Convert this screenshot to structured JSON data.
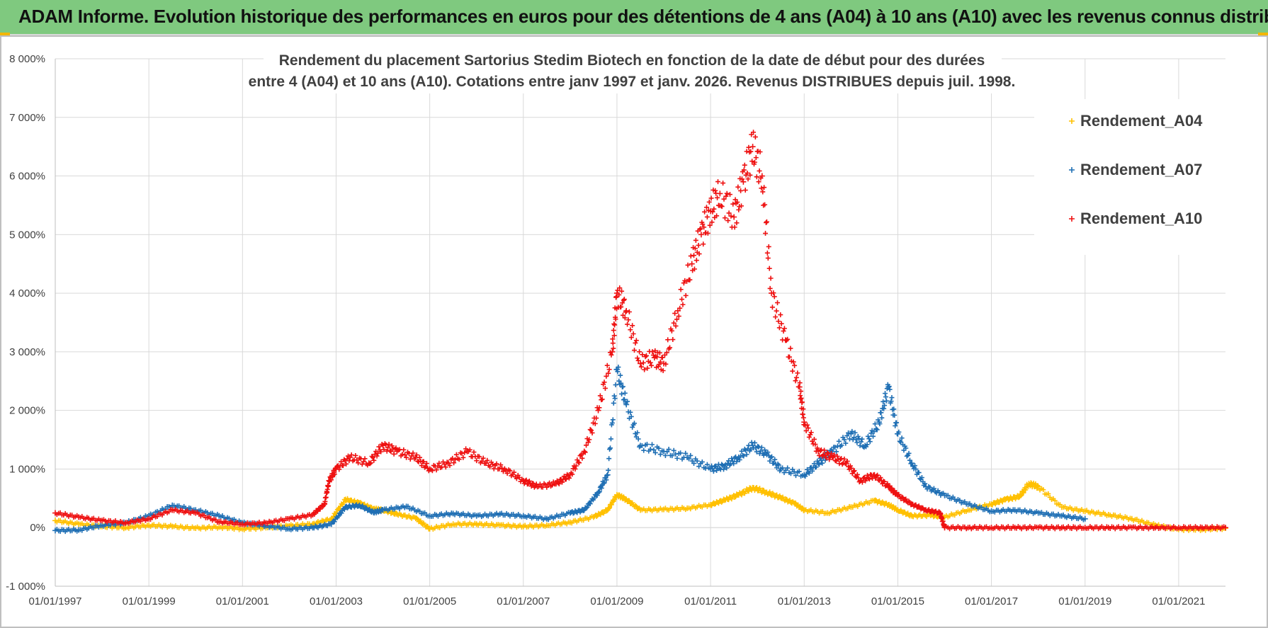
{
  "header": {
    "banner_title": "ADAM Informe. Evolution historique des performances en euros pour des détentions de 4 ans (A04) à 10 ans (A10) avec les revenus connus distribués"
  },
  "colors": {
    "banner": "#7fc97f",
    "A04": "#ffc000",
    "A07": "#1f6fb4",
    "A10": "#ee1111",
    "grid": "#d9d9d9"
  },
  "chart_data": {
    "type": "scatter",
    "title_line1": "Rendement du placement Sartorius Stedim Biotech en fonction de la date de début pour des durées",
    "title_line2": "entre 4 (A04) et 10 ans (A10).  Cotations entre janv 1997 et janv. 2026. Revenus DISTRIBUES depuis juil. 1998.",
    "xlabel": "",
    "ylabel": "",
    "xlim": [
      1997.0,
      2022.0
    ],
    "ylim": [
      -1000,
      8000
    ],
    "marker": "+",
    "grid": true,
    "legend_position": "top-right",
    "x_tick_labels": [
      "01/01/1997",
      "01/01/1999",
      "01/01/2001",
      "01/01/2003",
      "01/01/2005",
      "01/01/2007",
      "01/01/2009",
      "01/01/2011",
      "01/01/2013",
      "01/01/2015",
      "01/01/2017",
      "01/01/2019",
      "01/01/2021"
    ],
    "x_tick_values": [
      1997,
      1999,
      2001,
      2003,
      2005,
      2007,
      2009,
      2011,
      2013,
      2015,
      2017,
      2019,
      2021
    ],
    "y_tick_labels": [
      "-1 000%",
      "0%",
      "1 000%",
      "2 000%",
      "3 000%",
      "4 000%",
      "5 000%",
      "6 000%",
      "7 000%",
      "8 000%"
    ],
    "y_tick_values": [
      -1000,
      0,
      1000,
      2000,
      3000,
      4000,
      5000,
      6000,
      7000,
      8000
    ],
    "series": [
      {
        "name": "Rendement_A04",
        "x": [
          1997.0,
          1997.5,
          1998.0,
          1998.5,
          1999.0,
          1999.5,
          2000.0,
          2000.5,
          2001.0,
          2001.5,
          2002.0,
          2002.5,
          2002.9,
          2003.2,
          2003.5,
          2003.8,
          2004.0,
          2004.3,
          2004.7,
          2005.0,
          2005.5,
          2006.0,
          2006.5,
          2007.0,
          2007.5,
          2008.0,
          2008.5,
          2008.8,
          2009.0,
          2009.2,
          2009.5,
          2010.0,
          2010.5,
          2011.0,
          2011.3,
          2011.6,
          2011.9,
          2012.2,
          2012.5,
          2012.8,
          2013.0,
          2013.5,
          2014.0,
          2014.5,
          2014.8,
          2015.0,
          2015.3,
          2015.7,
          2016.0,
          2016.5,
          2017.0,
          2017.3,
          2017.6,
          2017.8,
          2018.0,
          2018.5,
          2019.0,
          2019.5,
          2020.0,
          2020.5,
          2021.0,
          2021.5,
          2022.0
        ],
        "y": [
          120,
          60,
          20,
          0,
          40,
          20,
          -10,
          10,
          -20,
          0,
          30,
          60,
          150,
          480,
          420,
          320,
          300,
          230,
          160,
          -20,
          60,
          60,
          40,
          20,
          40,
          90,
          180,
          300,
          560,
          480,
          300,
          310,
          330,
          390,
          470,
          560,
          680,
          600,
          510,
          410,
          300,
          250,
          350,
          460,
          390,
          300,
          200,
          210,
          180,
          300,
          400,
          480,
          530,
          750,
          700,
          350,
          280,
          220,
          150,
          40,
          -30,
          -30,
          -10
        ]
      },
      {
        "name": "Rendement_A07",
        "x": [
          1997.0,
          1997.5,
          1998.0,
          1998.5,
          1999.0,
          1999.5,
          2000.0,
          2000.5,
          2001.0,
          2001.5,
          2002.0,
          2002.5,
          2002.9,
          2003.2,
          2003.5,
          2003.8,
          2004.0,
          2004.5,
          2005.0,
          2005.5,
          2006.0,
          2006.5,
          2007.0,
          2007.5,
          2008.0,
          2008.3,
          2008.6,
          2008.8,
          2009.0,
          2009.2,
          2009.5,
          2010.0,
          2010.5,
          2011.0,
          2011.3,
          2011.6,
          2011.9,
          2012.2,
          2012.5,
          2013.0,
          2013.3,
          2013.6,
          2014.0,
          2014.3,
          2014.6,
          2014.8,
          2015.0,
          2015.3,
          2015.6,
          2016.0,
          2016.5,
          2017.0,
          2017.5,
          2018.0,
          2018.5,
          2019.0
        ],
        "y": [
          -50,
          -40,
          40,
          80,
          200,
          380,
          300,
          200,
          80,
          30,
          -20,
          0,
          60,
          350,
          380,
          260,
          300,
          360,
          200,
          240,
          200,
          230,
          200,
          150,
          250,
          300,
          600,
          900,
          2700,
          2100,
          1400,
          1300,
          1200,
          1000,
          1050,
          1200,
          1400,
          1250,
          1000,
          900,
          1100,
          1300,
          1600,
          1400,
          1800,
          2400,
          1600,
          1100,
          700,
          550,
          400,
          280,
          300,
          250,
          200,
          150
        ]
      },
      {
        "name": "Rendement_A10",
        "x": [
          1997.0,
          1997.5,
          1998.0,
          1998.5,
          1999.0,
          1999.5,
          2000.0,
          2000.5,
          2001.0,
          2001.5,
          2002.0,
          2002.5,
          2002.75,
          2002.85,
          2003.0,
          2003.3,
          2003.7,
          2004.0,
          2004.3,
          2004.7,
          2005.0,
          2005.4,
          2005.8,
          2006.2,
          2006.6,
          2007.0,
          2007.3,
          2007.7,
          2008.0,
          2008.3,
          2008.6,
          2008.9,
          2009.0,
          2009.2,
          2009.5,
          2009.8,
          2010.0,
          2010.3,
          2010.6,
          2010.8,
          2011.0,
          2011.2,
          2011.5,
          2011.7,
          2011.9,
          2012.1,
          2012.3,
          2012.6,
          2012.9,
          2013.0,
          2013.3,
          2013.6,
          2013.9,
          2014.2,
          2014.5,
          2014.8,
          2015.0,
          2015.3,
          2015.6,
          2015.9,
          2016.0,
          2016.5,
          2017.0,
          2017.5,
          2018.0,
          2018.5,
          2019.0,
          2019.5,
          2020.0,
          2020.5,
          2021.0,
          2021.5,
          2022.0
        ],
        "y": [
          250,
          180,
          120,
          80,
          150,
          300,
          250,
          100,
          60,
          80,
          150,
          220,
          400,
          800,
          1000,
          1200,
          1100,
          1400,
          1300,
          1200,
          1000,
          1100,
          1300,
          1100,
          1000,
          800,
          700,
          750,
          900,
          1300,
          2000,
          3000,
          4000,
          3700,
          2800,
          2900,
          2800,
          3700,
          4500,
          5000,
          5400,
          5700,
          5300,
          5900,
          6500,
          6000,
          4000,
          3200,
          2400,
          1800,
          1300,
          1200,
          1100,
          800,
          900,
          700,
          550,
          400,
          300,
          250,
          0,
          0,
          0,
          0,
          0,
          0,
          0,
          0,
          0,
          0,
          0,
          0,
          0
        ]
      }
    ]
  }
}
